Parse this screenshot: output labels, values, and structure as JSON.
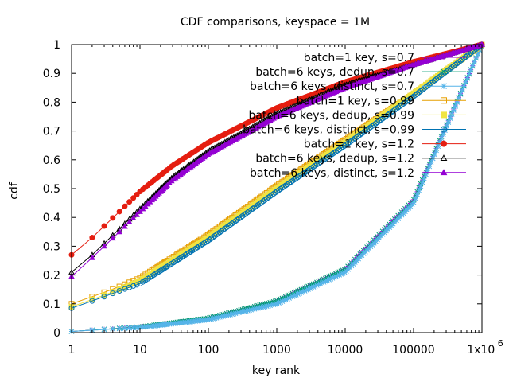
{
  "chart_data": {
    "type": "line",
    "title": "CDF comparisons, keyspace = 1M",
    "xlabel": "key rank",
    "ylabel": "cdf",
    "xscale": "log",
    "xlim": [
      1,
      1000000
    ],
    "ylim": [
      0,
      1
    ],
    "x_ticks": [
      {
        "value": 1,
        "label": "1"
      },
      {
        "value": 10,
        "label": "10"
      },
      {
        "value": 100,
        "label": "100"
      },
      {
        "value": 1000,
        "label": "1000"
      },
      {
        "value": 10000,
        "label": "10000"
      },
      {
        "value": 100000,
        "label": "100000"
      },
      {
        "value": 1000000,
        "label": "1x10",
        "superscript": "6"
      }
    ],
    "y_ticks": [
      {
        "value": 0,
        "label": "0"
      },
      {
        "value": 0.1,
        "label": "0.1"
      },
      {
        "value": 0.2,
        "label": "0.2"
      },
      {
        "value": 0.3,
        "label": "0.3"
      },
      {
        "value": 0.4,
        "label": "0.4"
      },
      {
        "value": 0.5,
        "label": "0.5"
      },
      {
        "value": 0.6,
        "label": "0.6"
      },
      {
        "value": 0.7,
        "label": "0.7"
      },
      {
        "value": 0.8,
        "label": "0.8"
      },
      {
        "value": 0.9,
        "label": "0.9"
      },
      {
        "value": 1,
        "label": "1"
      }
    ],
    "grid": false,
    "legend_position": "top-right",
    "series": [
      {
        "name": "batch=1 key, s=0.7",
        "color": "#9400d3",
        "marker": "plus",
        "x": [
          1,
          10,
          100,
          1000,
          10000,
          100000,
          1000000
        ],
        "y": [
          0.004,
          0.02,
          0.05,
          0.11,
          0.22,
          0.46,
          1.0
        ]
      },
      {
        "name": "batch=6 keys, dedup, s=0.7",
        "color": "#009e73",
        "marker": "cross",
        "x": [
          1,
          10,
          100,
          1000,
          10000,
          100000,
          1000000
        ],
        "y": [
          0.004,
          0.02,
          0.05,
          0.11,
          0.22,
          0.46,
          1.0
        ]
      },
      {
        "name": "batch=6 keys, distinct, s=0.7",
        "color": "#56b4e9",
        "marker": "star",
        "x": [
          1,
          10,
          100,
          1000,
          10000,
          100000,
          1000000
        ],
        "y": [
          0.004,
          0.018,
          0.045,
          0.1,
          0.21,
          0.45,
          1.0
        ]
      },
      {
        "name": "batch=1 key, s=0.99",
        "color": "#e69f00",
        "marker": "open-square",
        "x": [
          1,
          2,
          3,
          5,
          10,
          100,
          1000,
          10000,
          100000,
          1000000
        ],
        "y": [
          0.1,
          0.125,
          0.14,
          0.16,
          0.19,
          0.34,
          0.51,
          0.67,
          0.83,
          1.0
        ]
      },
      {
        "name": "batch=6 keys, dedup, s=0.99",
        "color": "#f0e442",
        "marker": "filled-square",
        "x": [
          1,
          2,
          3,
          5,
          10,
          100,
          1000,
          10000,
          100000,
          1000000
        ],
        "y": [
          0.09,
          0.115,
          0.13,
          0.15,
          0.18,
          0.33,
          0.5,
          0.66,
          0.83,
          1.0
        ]
      },
      {
        "name": "batch=6 keys, distinct, s=0.99",
        "color": "#0072b2",
        "marker": "open-circle",
        "x": [
          1,
          2,
          3,
          5,
          10,
          100,
          1000,
          10000,
          100000,
          1000000
        ],
        "y": [
          0.085,
          0.11,
          0.125,
          0.145,
          0.17,
          0.32,
          0.49,
          0.65,
          0.82,
          1.0
        ]
      },
      {
        "name": "batch=1 key, s=1.2",
        "color": "#e51e10",
        "marker": "filled-circle",
        "x": [
          1,
          2,
          3,
          5,
          10,
          30,
          100,
          1000,
          10000,
          100000,
          1000000
        ],
        "y": [
          0.27,
          0.33,
          0.37,
          0.42,
          0.49,
          0.58,
          0.66,
          0.78,
          0.87,
          0.94,
          1.0
        ]
      },
      {
        "name": "batch=6 keys, dedup, s=1.2",
        "color": "#000000",
        "marker": "open-triangle",
        "x": [
          1,
          2,
          3,
          5,
          10,
          30,
          100,
          1000,
          10000,
          100000,
          1000000
        ],
        "y": [
          0.21,
          0.27,
          0.31,
          0.36,
          0.43,
          0.54,
          0.63,
          0.76,
          0.86,
          0.93,
          1.0
        ]
      },
      {
        "name": "batch=6 keys, distinct, s=1.2",
        "color": "#9400d3",
        "marker": "filled-triangle",
        "x": [
          1,
          2,
          3,
          5,
          10,
          30,
          100,
          1000,
          10000,
          100000,
          1000000
        ],
        "y": [
          0.195,
          0.26,
          0.3,
          0.35,
          0.42,
          0.53,
          0.62,
          0.75,
          0.85,
          0.93,
          1.0
        ]
      }
    ]
  }
}
